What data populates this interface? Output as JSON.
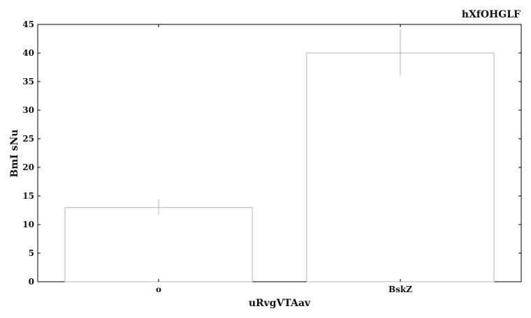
{
  "chart_data": {
    "type": "bar",
    "title": "hXfOHGLF",
    "xlabel": "uRvgVTAav",
    "ylabel": "BmI sNu",
    "categories": [
      "o",
      "BskZ"
    ],
    "values": [
      13,
      40
    ],
    "error_low": [
      11.8,
      36.1
    ],
    "error_high": [
      14.4,
      44.1
    ],
    "ylim": [
      0,
      45
    ],
    "yticks": [
      0,
      5,
      10,
      15,
      20,
      25,
      30,
      35,
      40,
      45
    ],
    "grid": false,
    "legend": "none",
    "colors": {
      "bar_fill": "#ffffff",
      "bar_stroke": "#b5b5b5",
      "errorbar": "#b5b5b5",
      "axis": "#000000"
    }
  }
}
